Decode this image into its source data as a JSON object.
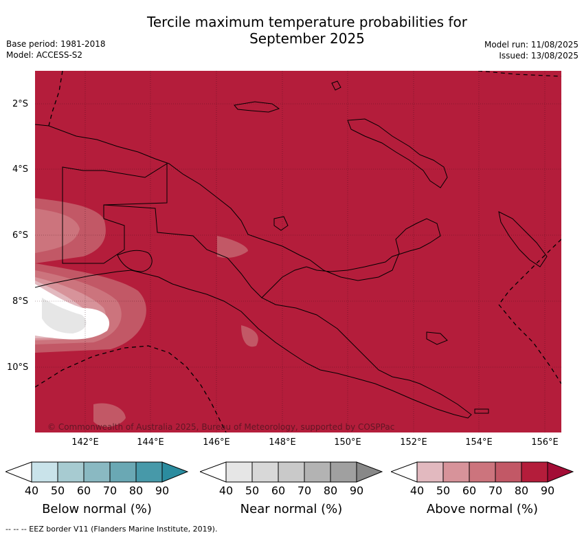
{
  "header": {
    "title_line1": "Tercile maximum temperature probabilities for",
    "title_line2": "September 2025",
    "base_period": "Base period: 1981-2018",
    "model": "Model: ACCESS-S2",
    "model_run": "Model run: 11/08/2025",
    "issued": "Issued: 13/08/2025"
  },
  "map": {
    "latitude_labels": [
      "2°S",
      "4°S",
      "6°S",
      "8°S",
      "10°S"
    ],
    "longitude_labels": [
      "142°E",
      "144°E",
      "146°E",
      "148°E",
      "150°E",
      "152°E",
      "154°E",
      "156°E"
    ],
    "copyright": "© Commonwealth of Australia 2025, Bureau of Meteorology, supported by COSPPac",
    "background_color": "#b41d3b"
  },
  "legend": {
    "below": {
      "label": "Below normal (%)",
      "ticks": [
        "40",
        "50",
        "60",
        "70",
        "80",
        "90"
      ],
      "colors": [
        "#ffffff",
        "#c9e3ea",
        "#a7cbd1",
        "#8ab9c2",
        "#6aa8b4",
        "#4799a9",
        "#2b8c9f"
      ]
    },
    "near": {
      "label": "Near normal (%)",
      "ticks": [
        "40",
        "50",
        "60",
        "70",
        "80",
        "90"
      ],
      "colors": [
        "#ffffff",
        "#e6e6e6",
        "#d8d8d8",
        "#c9c9c9",
        "#b3b3b3",
        "#a0a0a0",
        "#888888"
      ]
    },
    "above": {
      "label": "Above normal (%)",
      "ticks": [
        "40",
        "50",
        "60",
        "70",
        "80",
        "90"
      ],
      "colors": [
        "#ffffff",
        "#e2b9bf",
        "#d7939a",
        "#cc747d",
        "#c25866",
        "#b41d3b",
        "#a30d36"
      ]
    }
  },
  "footnote": "--  --  -- EEZ border V11 (Flanders Marine Institute, 2019)."
}
